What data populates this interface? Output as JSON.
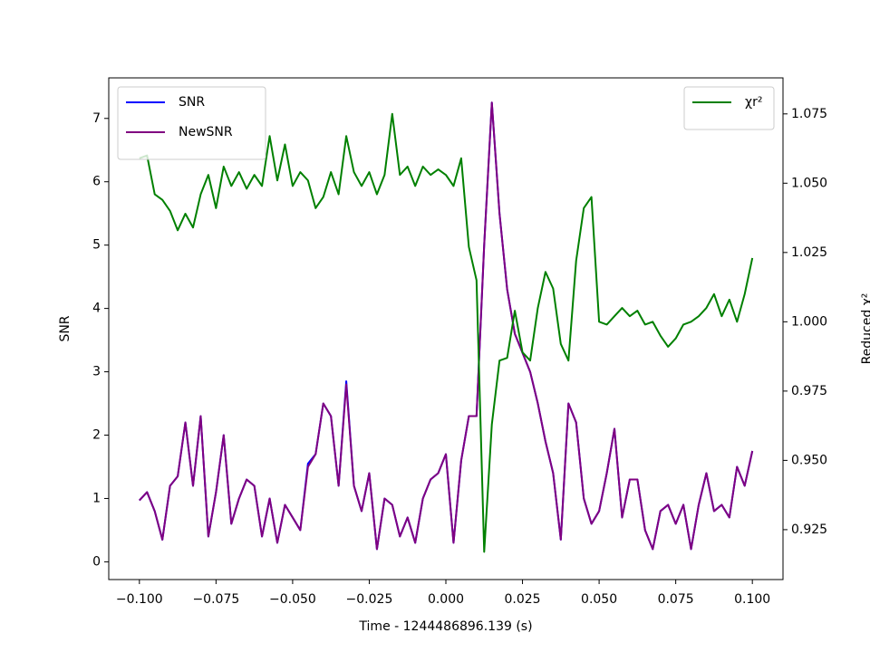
{
  "chart_data": {
    "type": "line",
    "xlabel": "Time - 1244486896.139 (s)",
    "ylabel": "SNR",
    "y2label": "Reduced χ²",
    "xlim": [
      -0.11,
      0.11
    ],
    "ylim": [
      -0.28,
      7.64
    ],
    "y2lim": [
      0.907,
      1.088
    ],
    "xticks": [
      {
        "value": -0.1,
        "label": "−0.100"
      },
      {
        "value": -0.075,
        "label": "−0.075"
      },
      {
        "value": -0.05,
        "label": "−0.050"
      },
      {
        "value": -0.025,
        "label": "−0.025"
      },
      {
        "value": 0,
        "label": "0.000"
      },
      {
        "value": 0.025,
        "label": "0.025"
      },
      {
        "value": 0.05,
        "label": "0.050"
      },
      {
        "value": 0.075,
        "label": "0.075"
      },
      {
        "value": 0.1,
        "label": "0.100"
      }
    ],
    "yticks": [
      0,
      1,
      2,
      3,
      4,
      5,
      6,
      7
    ],
    "y2ticks": [
      0.925,
      {
        "value": 0.95,
        "label": "0.950"
      },
      0.975,
      {
        "value": 1.0,
        "label": "1.000"
      },
      1.025,
      {
        "value": 1.05,
        "label": "1.050"
      },
      1.075
    ],
    "legend": "upper left",
    "legend2": "upper right",
    "x": [
      -0.1,
      -0.0975,
      -0.095,
      -0.0925,
      -0.09,
      -0.0875,
      -0.085,
      -0.0825,
      -0.08,
      -0.0775,
      -0.075,
      -0.0725,
      -0.07,
      -0.0675,
      -0.065,
      -0.0625,
      -0.06,
      -0.0575,
      -0.055,
      -0.0525,
      -0.05,
      -0.0475,
      -0.045,
      -0.0425,
      -0.04,
      -0.0375,
      -0.035,
      -0.0325,
      -0.03,
      -0.0275,
      -0.025,
      -0.0225,
      -0.02,
      -0.0175,
      -0.015,
      -0.0125,
      -0.01,
      -0.0075,
      -0.005,
      -0.0025,
      0,
      0.0025,
      0.005,
      0.0075,
      0.01,
      0.0125,
      0.015,
      0.0175,
      0.02,
      0.0225,
      0.025,
      0.0275,
      0.03,
      0.0325,
      0.035,
      0.0375,
      0.04,
      0.0425,
      0.045,
      0.0475,
      0.05,
      0.0525,
      0.055,
      0.0575,
      0.06,
      0.0625,
      0.065,
      0.0675,
      0.07,
      0.0725,
      0.075,
      0.0775,
      0.08,
      0.0825,
      0.085,
      0.0875,
      0.09,
      0.0925,
      0.095,
      0.0975,
      0.1
    ],
    "series": [
      {
        "name": "SNR",
        "color": "#0000ff",
        "values": [
          0.97,
          1.1,
          0.8,
          0.35,
          1.2,
          1.35,
          2.2,
          1.2,
          2.3,
          0.4,
          1.1,
          2.0,
          0.6,
          1.0,
          1.3,
          1.2,
          0.4,
          1.0,
          0.3,
          0.9,
          0.7,
          0.5,
          1.55,
          1.7,
          2.5,
          2.3,
          1.2,
          2.85,
          1.2,
          0.8,
          1.4,
          0.2,
          1.0,
          0.9,
          0.4,
          0.7,
          0.3,
          1.0,
          1.3,
          1.4,
          1.7,
          0.3,
          1.6,
          2.3,
          2.3,
          5.0,
          7.25,
          5.5,
          4.3,
          3.6,
          3.3,
          3.0,
          2.5,
          1.9,
          1.4,
          0.35,
          2.5,
          2.2,
          1.0,
          0.6,
          0.8,
          1.4,
          2.1,
          0.7,
          1.3,
          1.3,
          0.5,
          0.2,
          0.8,
          0.9,
          0.6,
          0.9,
          0.2,
          0.9,
          1.4,
          0.8,
          0.9,
          0.7,
          1.5,
          1.2,
          1.75
        ]
      },
      {
        "name": "NewSNR",
        "color": "#800080",
        "values": [
          0.97,
          1.1,
          0.8,
          0.35,
          1.2,
          1.35,
          2.2,
          1.2,
          2.3,
          0.4,
          1.1,
          2.0,
          0.6,
          1.0,
          1.3,
          1.2,
          0.4,
          1.0,
          0.3,
          0.9,
          0.7,
          0.5,
          1.5,
          1.7,
          2.5,
          2.3,
          1.2,
          2.8,
          1.2,
          0.8,
          1.4,
          0.2,
          1.0,
          0.9,
          0.4,
          0.7,
          0.3,
          1.0,
          1.3,
          1.4,
          1.7,
          0.3,
          1.6,
          2.3,
          2.3,
          5.0,
          7.25,
          5.5,
          4.3,
          3.6,
          3.3,
          3.0,
          2.5,
          1.9,
          1.4,
          0.35,
          2.5,
          2.2,
          1.0,
          0.6,
          0.8,
          1.4,
          2.1,
          0.7,
          1.3,
          1.3,
          0.5,
          0.2,
          0.8,
          0.9,
          0.6,
          0.9,
          0.2,
          0.9,
          1.4,
          0.8,
          0.9,
          0.7,
          1.5,
          1.2,
          1.75
        ]
      },
      {
        "name": "χr²",
        "color": "#008000",
        "axis": "y2",
        "values": [
          1.059,
          1.06,
          1.046,
          1.044,
          1.04,
          1.033,
          1.039,
          1.034,
          1.046,
          1.053,
          1.041,
          1.056,
          1.049,
          1.054,
          1.048,
          1.053,
          1.049,
          1.067,
          1.051,
          1.064,
          1.049,
          1.054,
          1.051,
          1.041,
          1.045,
          1.054,
          1.046,
          1.067,
          1.054,
          1.049,
          1.054,
          1.046,
          1.053,
          1.075,
          1.053,
          1.056,
          1.049,
          1.056,
          1.053,
          1.055,
          1.053,
          1.049,
          1.059,
          1.027,
          1.015,
          0.917,
          0.963,
          0.986,
          0.987,
          1.004,
          0.989,
          0.986,
          1.005,
          1.018,
          1.012,
          0.992,
          0.986,
          1.022,
          1.041,
          1.045,
          1.0,
          0.999,
          1.002,
          1.005,
          1.002,
          1.004,
          0.999,
          1.0,
          0.995,
          0.991,
          0.994,
          0.999,
          1.0,
          1.002,
          1.005,
          1.01,
          1.002,
          1.008,
          1.0,
          1.01,
          1.023
        ]
      }
    ]
  }
}
